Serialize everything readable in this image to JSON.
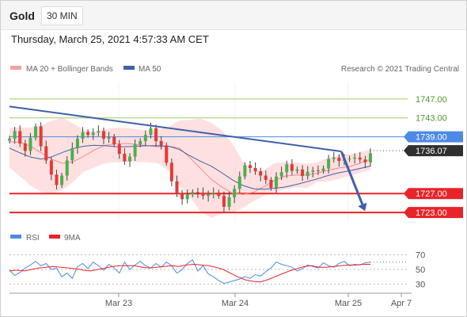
{
  "header": {
    "symbol": "Gold",
    "timeframe": "30 MIN"
  },
  "datetime": "Thursday, March 25, 2021 4:57:33 AM CET",
  "copyright": "Research © 2021 Trading Central",
  "colors": {
    "up": "#4caf50",
    "down": "#e53935",
    "bollinger": "#ffd6d6",
    "ma50": "#3f5fa8",
    "trend": "#3f5fa8",
    "support": "#e8232a",
    "resistance": "#9ccc65",
    "current_level": "#4d8ae6",
    "rsi": "#4d8ae6",
    "rsi_ma": "#e8232a"
  },
  "chart_data": [
    {
      "type": "candlestick",
      "legend": [
        {
          "name": "MA 20 + Bollinger Bands",
          "color": "#f4a0a0"
        },
        {
          "name": "MA 50",
          "color": "#3f5fa8"
        }
      ],
      "x_tick_labels": [
        "Mar 23",
        "Mar 24",
        "Mar 25",
        "Apr 7"
      ],
      "price_levels": [
        {
          "value": 1747.0,
          "label": "1747.00",
          "kind": "resistance"
        },
        {
          "value": 1743.0,
          "label": "1743.00",
          "kind": "resistance"
        },
        {
          "value": 1739.0,
          "label": "1739.00",
          "kind": "pivot"
        },
        {
          "value": 1736.07,
          "label": "1736.07",
          "kind": "last_price"
        },
        {
          "value": 1727.0,
          "label": "1727.00",
          "kind": "support"
        },
        {
          "value": 1723.0,
          "label": "1723.00",
          "kind": "support"
        }
      ],
      "ylim": [
        1721.0,
        1750.5
      ],
      "x_range": [
        "Mar 22 12:00",
        "Apr 7"
      ],
      "close_path": [
        1738.6,
        1740.2,
        1737.6,
        1736.0,
        1738.8,
        1741.2,
        1737.0,
        1734.0,
        1731.0,
        1728.8,
        1730.8,
        1734.0,
        1736.6,
        1738.6,
        1740.0,
        1739.4,
        1739.9,
        1740.2,
        1738.6,
        1739.0,
        1737.4,
        1735.4,
        1733.8,
        1734.8,
        1737.4,
        1738.1,
        1739.4,
        1740.8,
        1738.1,
        1737.2,
        1733.5,
        1729.6,
        1727.0,
        1725.8,
        1726.8,
        1727.3,
        1727.1,
        1726.5,
        1726.9,
        1727.2,
        1726.5,
        1724.2,
        1726.2,
        1728.0,
        1730.6,
        1733.0,
        1732.4,
        1731.7,
        1730.8,
        1729.9,
        1728.2,
        1730.6,
        1731.5,
        1733.2,
        1731.8,
        1732.1,
        1730.7,
        1731.6,
        1731.9,
        1731.8,
        1732.3,
        1734.3,
        1734.6,
        1733.9,
        1734.3,
        1734.4,
        1734.6,
        1734.2,
        1733.6,
        1735.5
      ],
      "ma20_path": [
        1738.0,
        1737.8,
        1737.0,
        1735.6,
        1734.2,
        1733.4,
        1733.7,
        1734.9,
        1736.2,
        1737.2,
        1737.5,
        1737.6,
        1737.4,
        1737.1,
        1736.9,
        1737.0,
        1736.6,
        1734.6,
        1732.3,
        1730.0,
        1728.4,
        1727.1,
        1726.8,
        1727.3,
        1728.5,
        1729.8,
        1730.7,
        1730.9,
        1730.9,
        1731.3,
        1731.9,
        1732.4,
        1732.7,
        1733.4,
        1734.2
      ],
      "bb_upper_path": [
        1740.8,
        1741.0,
        1740.9,
        1741.4,
        1742.4,
        1743.0,
        1741.8,
        1740.5,
        1740.1,
        1740.6,
        1740.9,
        1740.9,
        1740.6,
        1740.4,
        1740.5,
        1741.1,
        1742.4,
        1742.6,
        1742.8,
        1742.0,
        1740.4,
        1737.5,
        1733.7,
        1731.8,
        1732.0,
        1733.5,
        1733.6,
        1733.6,
        1733.3,
        1733.6,
        1734.6,
        1735.1,
        1735.3,
        1735.7,
        1736.4
      ],
      "bb_lower_path": [
        1732.5,
        1730.6,
        1728.7,
        1727.3,
        1726.9,
        1727.7,
        1729.5,
        1731.6,
        1732.5,
        1733.4,
        1733.6,
        1733.7,
        1733.7,
        1733.6,
        1733.4,
        1731.8,
        1728.6,
        1726.3,
        1723.2,
        1721.9,
        1722.7,
        1723.0,
        1724.0,
        1725.4,
        1726.6,
        1727.2,
        1727.9,
        1728.3,
        1728.2,
        1729.4,
        1729.6,
        1730.1,
        1730.7,
        1731.4,
        1732.0
      ],
      "ma50_path": [
        1736.6,
        1735.6,
        1734.7,
        1734.3,
        1734.8,
        1735.7,
        1736.5,
        1737.0,
        1737.2,
        1737.1,
        1736.9,
        1736.9,
        1737.0,
        1737.1,
        1737.1,
        1737.0,
        1736.3,
        1735.0,
        1733.8,
        1732.8,
        1731.4,
        1729.9,
        1728.7,
        1728.0,
        1727.9,
        1728.1,
        1728.4,
        1728.9,
        1729.5,
        1730.1,
        1730.8,
        1731.4,
        1731.8,
        1732.3,
        1732.8
      ],
      "trendline": [
        [
          0.0,
          1745.4
        ],
        [
          0.92,
          1735.9
        ]
      ],
      "projection_arrow": [
        [
          0.92,
          1735.8
        ],
        [
          0.985,
          1723.3
        ]
      ]
    },
    {
      "type": "line",
      "legend": [
        {
          "name": "RSI",
          "color": "#4d8ae6"
        },
        {
          "name": "9MA",
          "color": "#e8232a"
        }
      ],
      "y_tick_labels": [
        "70",
        "50",
        "30"
      ],
      "ylim": [
        20,
        80
      ],
      "rsi_path": [
        49,
        42,
        46,
        52,
        56,
        61,
        55,
        58,
        50,
        52,
        40,
        45,
        38,
        54,
        58,
        51,
        60,
        55,
        49,
        57,
        52,
        45,
        60,
        50,
        56,
        61,
        55,
        52,
        58,
        53,
        60,
        55,
        45,
        50,
        58,
        63,
        48,
        55,
        44,
        40,
        35,
        31,
        33,
        35,
        37,
        40,
        38,
        43,
        41,
        47,
        52,
        60,
        57,
        55,
        53,
        48,
        51,
        56,
        54,
        52,
        59,
        55,
        53,
        58,
        61,
        55,
        57,
        56,
        59,
        60
      ],
      "rsi_ma_path": [
        48,
        49,
        48,
        50,
        52,
        53,
        54,
        53,
        52,
        51,
        49,
        48,
        50,
        52,
        54,
        55,
        55,
        55,
        53,
        52,
        53,
        54,
        55,
        54,
        56,
        57,
        56,
        55,
        53,
        50,
        45,
        40,
        36,
        34,
        33,
        36,
        40,
        44,
        48,
        51,
        54,
        55,
        53,
        53,
        54,
        55,
        56,
        56,
        57,
        57
      ]
    }
  ]
}
